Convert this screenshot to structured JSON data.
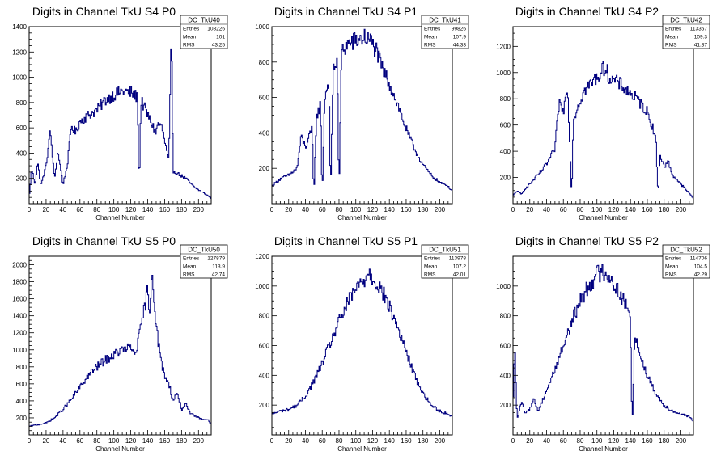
{
  "chart_data": [
    {
      "type": "histogram",
      "title": "Digits in Channel TkU S4 P0",
      "xlabel": "Channel Number",
      "xlim": [
        0,
        215
      ],
      "ylim": [
        0,
        1400
      ],
      "xticks": [
        0,
        20,
        40,
        60,
        80,
        100,
        120,
        140,
        160,
        180,
        200
      ],
      "yticks": [
        200,
        400,
        600,
        800,
        1000,
        1200,
        1400
      ],
      "stats": {
        "name": "DC_TkU40",
        "rows": [
          [
            "Entries",
            "108226"
          ],
          [
            "Mean",
            "101"
          ],
          [
            "RMS",
            "43.25"
          ]
        ]
      },
      "profile": [
        [
          0,
          40
        ],
        [
          3,
          280
        ],
        [
          7,
          150
        ],
        [
          10,
          330
        ],
        [
          14,
          140
        ],
        [
          20,
          300
        ],
        [
          25,
          580
        ],
        [
          30,
          190
        ],
        [
          34,
          420
        ],
        [
          40,
          150
        ],
        [
          45,
          300
        ],
        [
          50,
          620
        ],
        [
          55,
          560
        ],
        [
          60,
          650
        ],
        [
          70,
          700
        ],
        [
          80,
          740
        ],
        [
          90,
          820
        ],
        [
          100,
          860
        ],
        [
          110,
          890
        ],
        [
          120,
          880
        ],
        [
          128,
          840
        ],
        [
          130,
          100
        ],
        [
          132,
          820
        ],
        [
          140,
          700
        ],
        [
          150,
          560
        ],
        [
          152,
          640
        ],
        [
          157,
          600
        ],
        [
          165,
          330
        ],
        [
          168,
          1330
        ],
        [
          170,
          260
        ],
        [
          175,
          240
        ],
        [
          185,
          200
        ],
        [
          195,
          130
        ],
        [
          205,
          90
        ],
        [
          212,
          60
        ],
        [
          215,
          40
        ]
      ]
    },
    {
      "type": "histogram",
      "title": "Digits in Channel TkU S4 P1",
      "xlabel": "Channel Number",
      "xlim": [
        0,
        215
      ],
      "ylim": [
        0,
        1000
      ],
      "xticks": [
        0,
        20,
        40,
        60,
        80,
        100,
        120,
        140,
        160,
        180,
        200
      ],
      "yticks": [
        200,
        400,
        600,
        800,
        1000
      ],
      "stats": {
        "name": "DC_TkU41",
        "rows": [
          [
            "Entries",
            "99826"
          ],
          [
            "Mean",
            "107.9"
          ],
          [
            "RMS",
            "44.33"
          ]
        ]
      },
      "profile": [
        [
          0,
          100
        ],
        [
          10,
          140
        ],
        [
          20,
          160
        ],
        [
          30,
          200
        ],
        [
          35,
          380
        ],
        [
          40,
          320
        ],
        [
          48,
          420
        ],
        [
          50,
          40
        ],
        [
          53,
          480
        ],
        [
          58,
          560
        ],
        [
          60,
          40
        ],
        [
          63,
          600
        ],
        [
          68,
          700
        ],
        [
          70,
          40
        ],
        [
          73,
          750
        ],
        [
          78,
          820
        ],
        [
          80,
          40
        ],
        [
          83,
          860
        ],
        [
          90,
          900
        ],
        [
          100,
          920
        ],
        [
          110,
          940
        ],
        [
          118,
          920
        ],
        [
          125,
          860
        ],
        [
          130,
          780
        ],
        [
          140,
          680
        ],
        [
          150,
          560
        ],
        [
          160,
          420
        ],
        [
          170,
          310
        ],
        [
          180,
          220
        ],
        [
          190,
          160
        ],
        [
          200,
          120
        ],
        [
          210,
          100
        ],
        [
          215,
          70
        ]
      ]
    },
    {
      "type": "histogram",
      "title": "Digits in Channel TkU S4 P2",
      "xlabel": "Channel Number",
      "xlim": [
        0,
        215
      ],
      "ylim": [
        0,
        1350
      ],
      "xticks": [
        0,
        20,
        40,
        60,
        80,
        100,
        120,
        140,
        160,
        180,
        200
      ],
      "yticks": [
        200,
        400,
        600,
        800,
        1000,
        1200
      ],
      "stats": {
        "name": "DC_TkU42",
        "rows": [
          [
            "Entries",
            "113367"
          ],
          [
            "Mean",
            "109.3"
          ],
          [
            "RMS",
            "41.37"
          ]
        ]
      },
      "profile": [
        [
          0,
          60
        ],
        [
          5,
          100
        ],
        [
          10,
          70
        ],
        [
          15,
          120
        ],
        [
          20,
          150
        ],
        [
          30,
          220
        ],
        [
          40,
          300
        ],
        [
          50,
          420
        ],
        [
          55,
          780
        ],
        [
          60,
          700
        ],
        [
          65,
          920
        ],
        [
          70,
          50
        ],
        [
          72,
          640
        ],
        [
          78,
          760
        ],
        [
          85,
          860
        ],
        [
          95,
          930
        ],
        [
          105,
          1000
        ],
        [
          110,
          1050
        ],
        [
          115,
          960
        ],
        [
          120,
          940
        ],
        [
          130,
          900
        ],
        [
          140,
          840
        ],
        [
          150,
          780
        ],
        [
          160,
          700
        ],
        [
          170,
          520
        ],
        [
          173,
          50
        ],
        [
          175,
          380
        ],
        [
          180,
          280
        ],
        [
          185,
          320
        ],
        [
          190,
          220
        ],
        [
          200,
          150
        ],
        [
          210,
          80
        ],
        [
          215,
          40
        ]
      ]
    },
    {
      "type": "histogram",
      "title": "Digits in Channel TkU S5 P0",
      "xlabel": "Channel Number",
      "xlim": [
        0,
        215
      ],
      "ylim": [
        0,
        2100
      ],
      "xticks": [
        0,
        20,
        40,
        60,
        80,
        100,
        120,
        140,
        160,
        180,
        200
      ],
      "yticks": [
        200,
        400,
        600,
        800,
        1000,
        1200,
        1400,
        1600,
        1800,
        2000
      ],
      "stats": {
        "name": "DC_TkU50",
        "rows": [
          [
            "Entries",
            "127879"
          ],
          [
            "Mean",
            "113.9"
          ],
          [
            "RMS",
            "42.74"
          ]
        ]
      },
      "profile": [
        [
          0,
          100
        ],
        [
          10,
          120
        ],
        [
          20,
          140
        ],
        [
          30,
          200
        ],
        [
          40,
          300
        ],
        [
          50,
          420
        ],
        [
          60,
          560
        ],
        [
          70,
          700
        ],
        [
          80,
          800
        ],
        [
          90,
          880
        ],
        [
          100,
          940
        ],
        [
          110,
          1000
        ],
        [
          118,
          1020
        ],
        [
          122,
          1000
        ],
        [
          125,
          950
        ],
        [
          130,
          1150
        ],
        [
          135,
          1420
        ],
        [
          140,
          1700
        ],
        [
          142,
          1350
        ],
        [
          145,
          1980
        ],
        [
          150,
          1300
        ],
        [
          155,
          900
        ],
        [
          160,
          700
        ],
        [
          165,
          600
        ],
        [
          170,
          400
        ],
        [
          175,
          500
        ],
        [
          180,
          300
        ],
        [
          185,
          360
        ],
        [
          190,
          250
        ],
        [
          200,
          200
        ],
        [
          210,
          180
        ],
        [
          215,
          140
        ]
      ]
    },
    {
      "type": "histogram",
      "title": "Digits in Channel TkU S5 P1",
      "xlabel": "Channel Number",
      "xlim": [
        0,
        215
      ],
      "ylim": [
        0,
        1200
      ],
      "xticks": [
        0,
        20,
        40,
        60,
        80,
        100,
        120,
        140,
        160,
        180,
        200
      ],
      "yticks": [
        200,
        400,
        600,
        800,
        1000,
        1200
      ],
      "stats": {
        "name": "DC_TkU51",
        "rows": [
          [
            "Entries",
            "113978"
          ],
          [
            "Mean",
            "107.2"
          ],
          [
            "RMS",
            "42.01"
          ]
        ]
      },
      "profile": [
        [
          0,
          140
        ],
        [
          10,
          160
        ],
        [
          20,
          170
        ],
        [
          30,
          200
        ],
        [
          40,
          260
        ],
        [
          50,
          360
        ],
        [
          60,
          480
        ],
        [
          70,
          620
        ],
        [
          80,
          760
        ],
        [
          90,
          880
        ],
        [
          100,
          980
        ],
        [
          110,
          1040
        ],
        [
          115,
          1100
        ],
        [
          120,
          1060
        ],
        [
          130,
          980
        ],
        [
          140,
          860
        ],
        [
          150,
          720
        ],
        [
          160,
          560
        ],
        [
          170,
          400
        ],
        [
          180,
          280
        ],
        [
          190,
          200
        ],
        [
          200,
          160
        ],
        [
          210,
          140
        ],
        [
          215,
          120
        ]
      ]
    },
    {
      "type": "histogram",
      "title": "Digits in Channel TkU S5 P2",
      "xlabel": "Channel Number",
      "xlim": [
        0,
        215
      ],
      "ylim": [
        0,
        1200
      ],
      "xticks": [
        0,
        20,
        40,
        60,
        80,
        100,
        120,
        140,
        160,
        180,
        200
      ],
      "yticks": [
        200,
        400,
        600,
        800,
        1000
      ],
      "stats": {
        "name": "DC_TkU52",
        "rows": [
          [
            "Entries",
            "114706"
          ],
          [
            "Mean",
            "104.5"
          ],
          [
            "RMS",
            "42.29"
          ]
        ]
      },
      "profile": [
        [
          0,
          120
        ],
        [
          2,
          620
        ],
        [
          5,
          100
        ],
        [
          10,
          220
        ],
        [
          15,
          140
        ],
        [
          20,
          180
        ],
        [
          25,
          240
        ],
        [
          30,
          160
        ],
        [
          40,
          300
        ],
        [
          50,
          440
        ],
        [
          60,
          600
        ],
        [
          70,
          760
        ],
        [
          80,
          900
        ],
        [
          90,
          1000
        ],
        [
          100,
          1080
        ],
        [
          110,
          1100
        ],
        [
          120,
          1020
        ],
        [
          130,
          920
        ],
        [
          140,
          800
        ],
        [
          142,
          20
        ],
        [
          145,
          700
        ],
        [
          150,
          560
        ],
        [
          160,
          400
        ],
        [
          170,
          280
        ],
        [
          180,
          200
        ],
        [
          190,
          160
        ],
        [
          200,
          140
        ],
        [
          210,
          120
        ],
        [
          215,
          90
        ]
      ]
    }
  ]
}
